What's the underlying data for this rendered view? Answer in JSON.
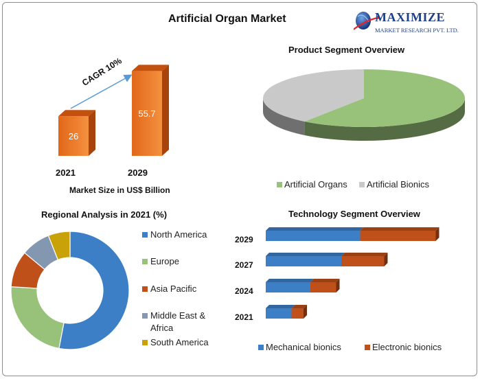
{
  "title": "Artificial Organ Market",
  "logo": {
    "name": "MAXIMIZE",
    "subtitle": "MARKET RESEARCH PVT. LTD."
  },
  "colors": {
    "orange": "#e36c1d",
    "blue": "#3d7fc6",
    "green": "#98c27a",
    "gray": "#c9c9c9",
    "darkred": "#c0501a",
    "steel": "#8497b0",
    "gold": "#c9a20a"
  },
  "chart_data": [
    {
      "type": "bar",
      "caption": "Market Size in US$ Billion",
      "categories": [
        "2021",
        "2029"
      ],
      "values": [
        26,
        55.7
      ],
      "value_labels": [
        "26",
        "55.7"
      ],
      "annotation": "CAGR 10%"
    },
    {
      "type": "pie",
      "title": "Product Segment Overview",
      "labels": [
        "Artificial Organs",
        "Artificial Bionics"
      ],
      "values": [
        60,
        40
      ],
      "colors": [
        "#98c27a",
        "#c9c9c9"
      ],
      "legend": "bottom"
    },
    {
      "type": "pie",
      "variant": "donut",
      "title": "Regional Analysis in 2021 (%)",
      "labels": [
        "North America",
        "Europe",
        "Asia Pacific",
        "Middle East & Africa",
        "South America"
      ],
      "legend_lines": [
        [
          "North America"
        ],
        [
          "Europe"
        ],
        [
          "Asia Pacific"
        ],
        [
          "Middle East &",
          "Africa"
        ],
        [
          "South America"
        ]
      ],
      "values": [
        53,
        23,
        10,
        8,
        6
      ],
      "colors": [
        "#3d7fc6",
        "#98c27a",
        "#c0501a",
        "#8497b0",
        "#c9a20a"
      ],
      "legend": "right"
    },
    {
      "type": "bar",
      "orientation": "horizontal",
      "stacked": true,
      "title": "Technology Segment Overview",
      "categories": [
        "2029",
        "2027",
        "2024",
        "2021"
      ],
      "series": [
        {
          "name": "Mechanical bionics",
          "values": [
            55,
            44,
            26,
            15
          ],
          "color": "#3d7fc6"
        },
        {
          "name": "Electronic bionics",
          "values": [
            44,
            25,
            15,
            7
          ],
          "color": "#c0501a"
        }
      ],
      "legend": "bottom"
    }
  ]
}
